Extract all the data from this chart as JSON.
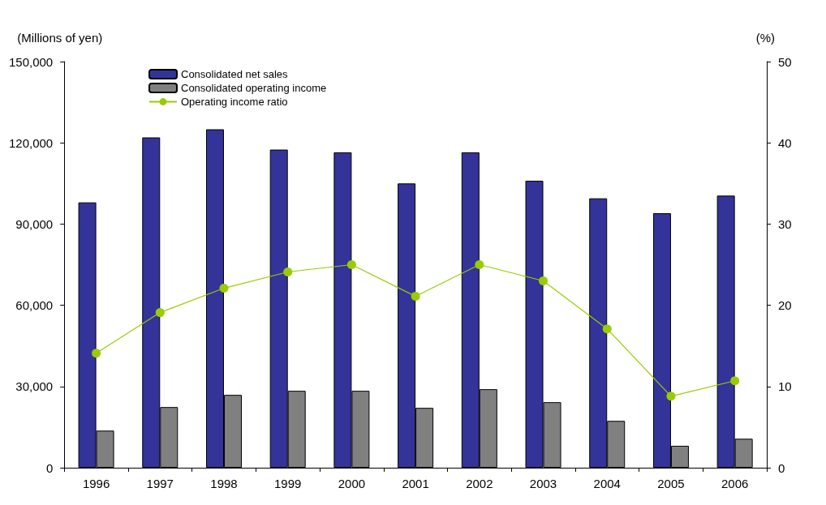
{
  "chart_data": {
    "type": "bar",
    "ylabel": "(Millions of yen)",
    "y2label": "(%)",
    "categories": [
      "1996",
      "1997",
      "1998",
      "1999",
      "2000",
      "2001",
      "2002",
      "2003",
      "2004",
      "2005",
      "2006"
    ],
    "series": [
      {
        "name": "Consolidated net sales",
        "color": "#333399",
        "values": [
          98000,
          122000,
          125000,
          117500,
          116500,
          105000,
          116500,
          106000,
          99500,
          94000,
          100500
        ]
      },
      {
        "name": "Consolidated operating income",
        "color": "#808080",
        "values": [
          13700,
          22400,
          26900,
          28400,
          28400,
          22100,
          29000,
          24200,
          17300,
          8100,
          10700
        ]
      },
      {
        "name": "Operating income ratio",
        "type": "line",
        "axis": "y2",
        "color": "#99cc00",
        "marker": "circle",
        "values": [
          14.1,
          19.1,
          22.1,
          24.1,
          25,
          21.1,
          25,
          23,
          17.1,
          8.8,
          10.7
        ]
      }
    ],
    "ylim": [
      0,
      150000
    ],
    "yticks": [
      {
        "value": 0,
        "label": "0"
      },
      {
        "value": 30000,
        "label": "30,000"
      },
      {
        "value": 60000,
        "label": "60,000"
      },
      {
        "value": 90000,
        "label": "90,000"
      },
      {
        "value": 120000,
        "label": "120,000"
      },
      {
        "value": 150000,
        "label": "150,000"
      }
    ],
    "y2lim": [
      0,
      50
    ],
    "y2ticks": [
      0,
      10,
      20,
      30,
      40,
      50
    ],
    "grid": false,
    "legend": "top left"
  }
}
